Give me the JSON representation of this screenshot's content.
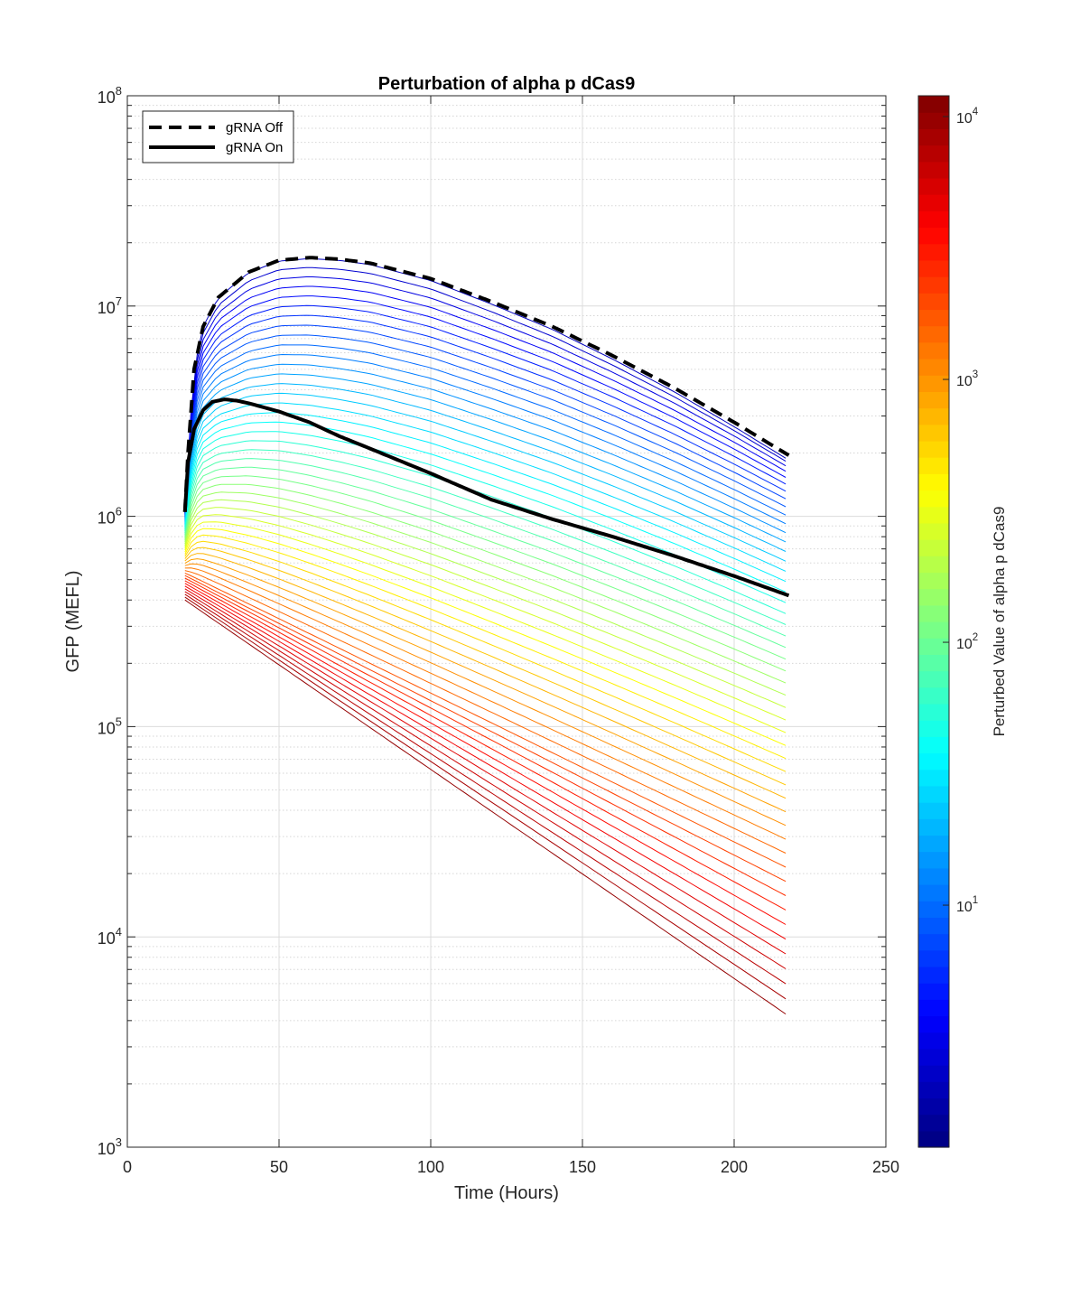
{
  "chart_data": {
    "type": "line",
    "title": "Perturbation of alpha p dCas9",
    "xlabel": "Time (Hours)",
    "ylabel": "GFP (MEFL)",
    "xlim": [
      0,
      250
    ],
    "ylim": [
      1000,
      100000000
    ],
    "yscale": "log",
    "grid": true,
    "legend_position": "top-left",
    "x_ticks": [
      "0",
      "50",
      "100",
      "150",
      "200",
      "250"
    ],
    "y_ticks": [
      {
        "base": "10",
        "exp": "3"
      },
      {
        "base": "10",
        "exp": "4"
      },
      {
        "base": "10",
        "exp": "5"
      },
      {
        "base": "10",
        "exp": "6"
      },
      {
        "base": "10",
        "exp": "7"
      },
      {
        "base": "10",
        "exp": "8"
      }
    ],
    "t_start": 19,
    "t_end": 218,
    "reference_series": [
      {
        "name": "gRNA Off",
        "style": "dashed",
        "color": "#000000",
        "x": [
          19,
          20,
          22,
          25,
          30,
          40,
          50,
          60,
          70,
          80,
          100,
          120,
          140,
          160,
          180,
          200,
          218
        ],
        "y": [
          1050000,
          2000000,
          5000000,
          8000000,
          11000000,
          14500000,
          16500000,
          17000000,
          16700000,
          16000000,
          13500000,
          10500000,
          8000000,
          5800000,
          4100000,
          2800000,
          1950000
        ]
      },
      {
        "name": "gRNA On",
        "style": "solid",
        "color": "#000000",
        "x": [
          19,
          20,
          22,
          25,
          28,
          32,
          36,
          40,
          50,
          60,
          70,
          80,
          100,
          120,
          140,
          160,
          180,
          200,
          218
        ],
        "y": [
          1050000,
          1800000,
          2600000,
          3200000,
          3500000,
          3600000,
          3550000,
          3450000,
          3150000,
          2800000,
          2400000,
          2100000,
          1600000,
          1200000,
          970000,
          800000,
          650000,
          520000,
          420000
        ]
      }
    ],
    "perturbation_family": {
      "count": 50,
      "color_by": "perturbed_value",
      "end_values_at_218h": {
        "lowest_param": 1850000,
        "highest_param": 4200
      },
      "start_values_at_19h": {
        "lowest_param": 1050000,
        "highest_param": 400000
      }
    },
    "colorbar": {
      "label": "Perturbed Value of alpha p dCas9",
      "scale": "log",
      "colormap": "jet",
      "range": [
        1.2,
        12000
      ],
      "ticks": [
        {
          "base": "10",
          "exp": "1",
          "value": 10
        },
        {
          "base": "10",
          "exp": "2",
          "value": 100
        },
        {
          "base": "10",
          "exp": "3",
          "value": 1000
        },
        {
          "base": "10",
          "exp": "4",
          "value": 10000
        }
      ]
    }
  }
}
